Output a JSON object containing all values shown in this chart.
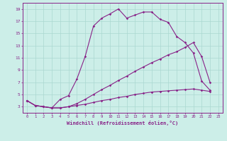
{
  "xlabel": "Windchill (Refroidissement éolien,°C)",
  "background_color": "#cceee8",
  "grid_color": "#aad8d0",
  "line_color": "#882288",
  "xlim": [
    -0.5,
    23.5
  ],
  "ylim": [
    2.0,
    20.0
  ],
  "xticks": [
    0,
    1,
    2,
    3,
    4,
    5,
    6,
    7,
    8,
    9,
    10,
    11,
    12,
    13,
    14,
    15,
    16,
    17,
    18,
    19,
    20,
    21,
    22,
    23
  ],
  "yticks": [
    3,
    5,
    7,
    9,
    11,
    13,
    15,
    17,
    19
  ],
  "line1_x": [
    0,
    1,
    2,
    3,
    4,
    5,
    6,
    7,
    8,
    9,
    10,
    11,
    12,
    13,
    14,
    15,
    16,
    17,
    18,
    19,
    20,
    21,
    22
  ],
  "line1_y": [
    4.0,
    3.2,
    3.0,
    2.8,
    4.2,
    4.8,
    7.5,
    11.2,
    16.2,
    17.5,
    18.2,
    19.0,
    17.5,
    18.0,
    18.5,
    18.5,
    17.3,
    16.8,
    14.5,
    13.5,
    11.8,
    7.2,
    5.7
  ],
  "line2_x": [
    0,
    1,
    2,
    3,
    4,
    5,
    6,
    7,
    8,
    9,
    10,
    11,
    12,
    13,
    14,
    15,
    16,
    17,
    18,
    19,
    20,
    21,
    22
  ],
  "line2_y": [
    4.0,
    3.2,
    3.0,
    2.8,
    2.8,
    3.0,
    3.2,
    3.4,
    3.7,
    4.0,
    4.2,
    4.5,
    4.7,
    5.0,
    5.2,
    5.4,
    5.5,
    5.6,
    5.7,
    5.8,
    5.9,
    5.7,
    5.5
  ],
  "line3_x": [
    0,
    1,
    2,
    3,
    4,
    5,
    6,
    7,
    8,
    9,
    10,
    11,
    12,
    13,
    14,
    15,
    16,
    17,
    18,
    19,
    20,
    21,
    22
  ],
  "line3_y": [
    4.0,
    3.2,
    3.0,
    2.8,
    2.8,
    3.0,
    3.5,
    4.2,
    5.0,
    5.8,
    6.5,
    7.3,
    8.0,
    8.8,
    9.5,
    10.2,
    10.8,
    11.5,
    12.0,
    12.7,
    13.5,
    11.2,
    7.0
  ]
}
